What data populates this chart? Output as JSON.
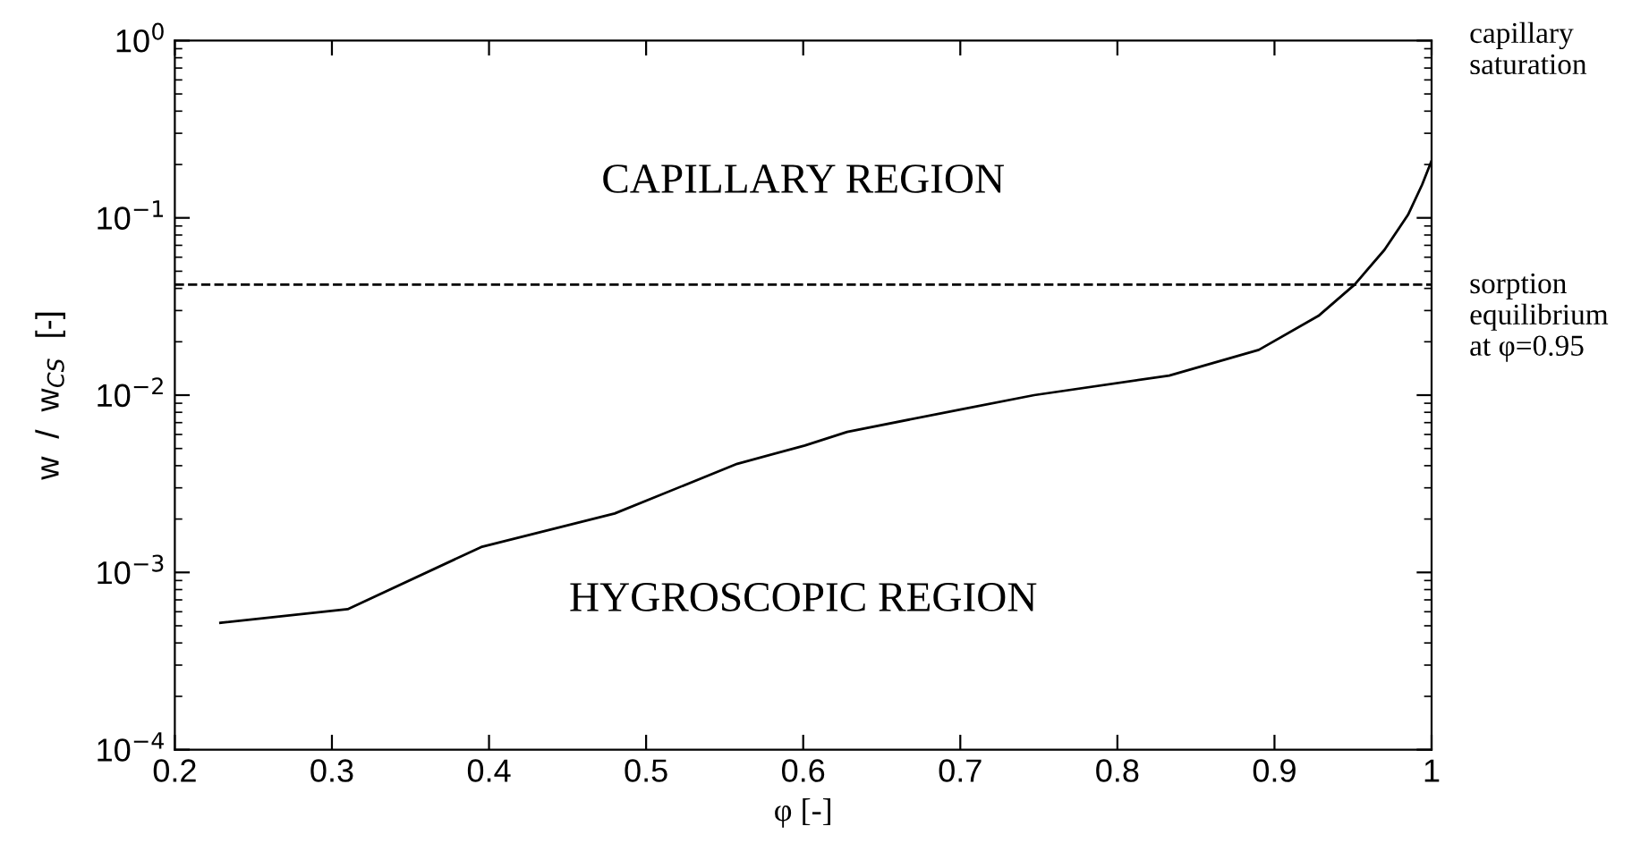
{
  "chart_data": {
    "type": "line",
    "xlabel": "φ [-]",
    "ylabel": "w  /  w$_{CS}$  [-]",
    "x": [
      0.229,
      0.31,
      0.395,
      0.48,
      0.558,
      0.601,
      0.628,
      0.7,
      0.747,
      0.833,
      0.89,
      0.928,
      0.951,
      0.97,
      0.985,
      0.994,
      1.0
    ],
    "series": [
      {
        "color": "#000000",
        "values": [
          0.00052,
          0.00062,
          0.00139,
          0.00215,
          0.0041,
          0.0052,
          0.0062,
          0.0083,
          0.01,
          0.0129,
          0.018,
          0.028,
          0.042,
          0.066,
          0.104,
          0.154,
          0.21
        ]
      }
    ],
    "log": "y",
    "xlim": [
      0.2,
      1
    ],
    "xticks": [
      0.2,
      0.3,
      0.4,
      0.5,
      0.6,
      0.7,
      0.8,
      0.9,
      1
    ],
    "ylim": [
      0.0001,
      1
    ],
    "yticks": [
      {
        "value": 0.0001,
        "label": "10$^{−4}$"
      },
      {
        "value": 0.001,
        "label": "10$^{−3}$"
      },
      {
        "value": 0.01,
        "label": "10$^{−2}$"
      },
      {
        "value": 0.1,
        "label": "10$^{−1}$"
      },
      {
        "value": 1,
        "label": "10$^{0}$"
      }
    ],
    "grid": false,
    "line_style": "solid",
    "marker": "none",
    "ref_lines": [
      {
        "axis": "y",
        "value": 0.042,
        "line_style": "dashed",
        "color": "#000000"
      }
    ],
    "annotations": [
      "CAPILLARY REGION",
      "HYGROSCOPIC REGION",
      "capillary\nsaturation",
      "sorption\nequilibrium\nat φ=0.95"
    ]
  }
}
